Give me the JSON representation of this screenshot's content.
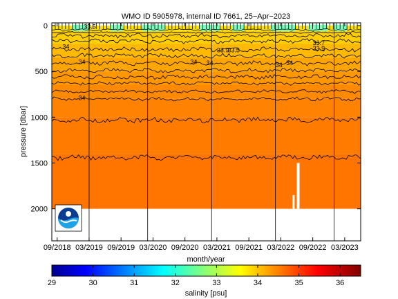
{
  "chart_data": [
    {
      "type": "heatmap",
      "title": "WMO ID 5905978, internal ID 7661, 25−Apr−2023",
      "xlabel": "month/year",
      "ylabel": "pressure [dbar]",
      "x_ticks": [
        "09/2018",
        "03/2019",
        "09/2019",
        "03/2020",
        "09/2020",
        "03/2021",
        "09/2021",
        "03/2022",
        "09/2022",
        "03/2023"
      ],
      "y_ticks": [
        "0",
        "500",
        "1000",
        "1500",
        "2000"
      ],
      "ylim": [
        2350,
        -30
      ],
      "y_reversed": true,
      "profile_max_pressure_dbar": 2000,
      "layers": [
        {
          "top": 0,
          "bottom": 60,
          "salinity": 33.9
        },
        {
          "top": 60,
          "bottom": 200,
          "salinity": 34.05
        },
        {
          "top": 200,
          "bottom": 350,
          "salinity": 34.2
        },
        {
          "top": 350,
          "bottom": 500,
          "salinity": 34.35
        },
        {
          "top": 500,
          "bottom": 650,
          "salinity": 34.45
        },
        {
          "top": 650,
          "bottom": 800,
          "salinity": 34.55
        },
        {
          "top": 800,
          "bottom": 1000,
          "salinity": 34.6
        },
        {
          "top": 1000,
          "bottom": 1400,
          "salinity": 34.65
        },
        {
          "top": 1400,
          "bottom": 2000,
          "salinity": 34.7
        }
      ],
      "fresh_surface_color": "#7fffbf",
      "contour_depths_dbar": [
        45,
        75,
        110,
        170,
        260,
        330,
        410,
        490,
        560,
        630,
        720,
        800,
        1030,
        1440
      ],
      "contour_labels": [
        {
          "text": "34",
          "date": "2018-10",
          "pressure": 230
        },
        {
          "text": "34",
          "date": "2019-01",
          "pressure": 395
        },
        {
          "text": "34",
          "date": "2019-01",
          "pressure": 790
        },
        {
          "text": "33.5",
          "date": "2019-02",
          "pressure": 10
        },
        {
          "text": "34",
          "date": "2020-10",
          "pressure": 395
        },
        {
          "text": "34",
          "date": "2021-01",
          "pressure": 410
        },
        {
          "text": "33.9",
          "date": "2021-03",
          "pressure": 270
        },
        {
          "text": "33.5",
          "date": "2021-05",
          "pressure": 270
        },
        {
          "text": "34",
          "date": "2022-02",
          "pressure": 430
        },
        {
          "text": "34",
          "date": "2022-04",
          "pressure": 410
        },
        {
          "text": "33.7",
          "date": "2022-09",
          "pressure": 190
        },
        {
          "text": "33.9",
          "date": "2022-09",
          "pressure": 250
        }
      ],
      "vertical_lines_dates": [
        "2019-03",
        "2020-02",
        "2021-02",
        "2022-02",
        "2023-01"
      ],
      "logo": "noaa-logo"
    },
    {
      "type": "colorbar",
      "xlabel": "salinity [psu]",
      "range": [
        29,
        36.5
      ],
      "ticks": [
        "29",
        "30",
        "31",
        "32",
        "33",
        "34",
        "35",
        "36"
      ],
      "colormap": "jet"
    }
  ]
}
